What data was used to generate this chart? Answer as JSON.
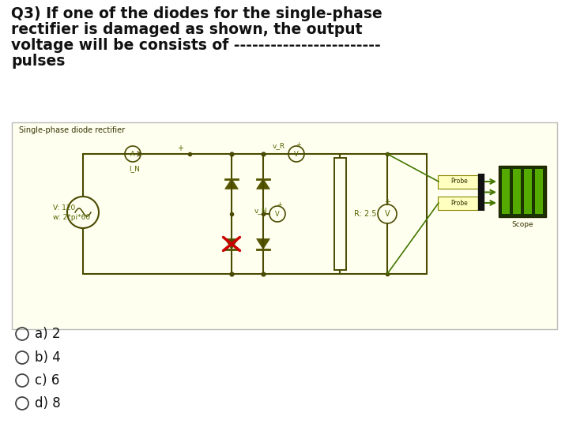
{
  "bg_color": "#ffffff",
  "circuit_bg": "#fffff0",
  "circuit_border": "#bbbbbb",
  "title_lines": [
    "Q3) If one of the diodes for the single-phase",
    "rectifier is damaged as shown, the output",
    "voltage will be consists of ------------------------",
    "pulses"
  ],
  "circuit_label": "Single-phase diode rectifier",
  "options": [
    {
      "label": "a) 2",
      "bold": false
    },
    {
      "label": "b) 4",
      "bold": false
    },
    {
      "label": "c) 6",
      "bold": false
    },
    {
      "label": "d) 8",
      "bold": false
    }
  ],
  "wire_color": "#4a4a00",
  "diode_fill": "#555500",
  "label_color": "#556600",
  "scope_dark": "#1a3300",
  "scope_light": "#336600",
  "scope_stripe": "#55aa00",
  "green_arrow": "#447700",
  "probe_border": "#888800"
}
